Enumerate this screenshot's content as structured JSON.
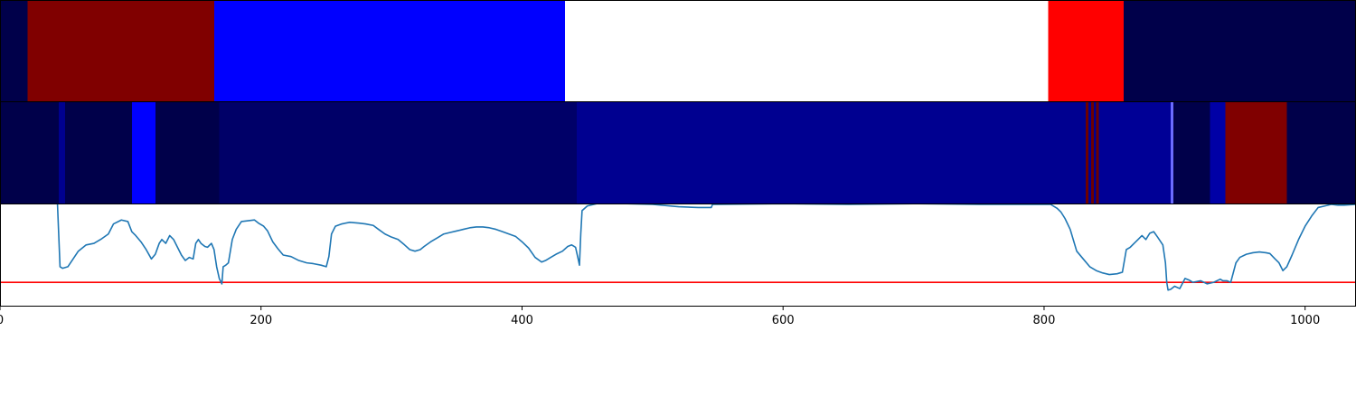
{
  "chart_data": [
    {
      "type": "heatmap",
      "colormap": "seismic",
      "segments": [
        {
          "start": 0,
          "end": 21,
          "color": "#00004a"
        },
        {
          "start": 21,
          "end": 164,
          "color": "#800000"
        },
        {
          "start": 164,
          "end": 433,
          "color": "#0000ff"
        },
        {
          "start": 433,
          "end": 803,
          "color": "#ffffff"
        },
        {
          "start": 803,
          "end": 861,
          "color": "#ff0000"
        },
        {
          "start": 861,
          "end": 1039,
          "color": "#00004a"
        }
      ]
    },
    {
      "type": "heatmap",
      "colormap": "seismic",
      "segments": [
        {
          "start": 0,
          "end": 45,
          "color": "#00004a"
        },
        {
          "start": 45,
          "end": 50,
          "color": "#00008f"
        },
        {
          "start": 50,
          "end": 101,
          "color": "#00004a"
        },
        {
          "start": 101,
          "end": 119,
          "color": "#0000ff"
        },
        {
          "start": 119,
          "end": 168,
          "color": "#00004a"
        },
        {
          "start": 168,
          "end": 442,
          "color": "#000068"
        },
        {
          "start": 442,
          "end": 832,
          "color": "#000090"
        },
        {
          "start": 832,
          "end": 834,
          "color": "#6e0000"
        },
        {
          "start": 834,
          "end": 836,
          "color": "#000090"
        },
        {
          "start": 836,
          "end": 838,
          "color": "#6e0000"
        },
        {
          "start": 838,
          "end": 840,
          "color": "#000090"
        },
        {
          "start": 840,
          "end": 842,
          "color": "#6e0000"
        },
        {
          "start": 842,
          "end": 897,
          "color": "#000096"
        },
        {
          "start": 897,
          "end": 899,
          "color": "#6a6aff"
        },
        {
          "start": 899,
          "end": 927,
          "color": "#00004a"
        },
        {
          "start": 927,
          "end": 939,
          "color": "#0000a6"
        },
        {
          "start": 939,
          "end": 986,
          "color": "#800000"
        },
        {
          "start": 986,
          "end": 1039,
          "color": "#00004a"
        }
      ]
    },
    {
      "type": "line",
      "xlim": [
        0,
        1039
      ],
      "ylim": [
        -0.3,
        1.0
      ],
      "xticks": [
        0,
        200,
        400,
        600,
        800,
        1000
      ],
      "threshold": {
        "y": 0.0,
        "color": "#ff0000"
      },
      "series": [
        {
          "color": "#1f77b4",
          "points": [
            [
              0,
              1.02
            ],
            [
              44,
              1.02
            ],
            [
              46,
              0.2
            ],
            [
              48,
              0.18
            ],
            [
              52,
              0.2
            ],
            [
              56,
              0.3
            ],
            [
              60,
              0.4
            ],
            [
              66,
              0.48
            ],
            [
              72,
              0.5
            ],
            [
              78,
              0.56
            ],
            [
              83,
              0.62
            ],
            [
              87,
              0.75
            ],
            [
              93,
              0.8
            ],
            [
              98,
              0.78
            ],
            [
              101,
              0.65
            ],
            [
              104,
              0.6
            ],
            [
              108,
              0.52
            ],
            [
              112,
              0.42
            ],
            [
              116,
              0.3
            ],
            [
              119,
              0.36
            ],
            [
              122,
              0.5
            ],
            [
              124,
              0.55
            ],
            [
              127,
              0.5
            ],
            [
              130,
              0.6
            ],
            [
              133,
              0.55
            ],
            [
              136,
              0.45
            ],
            [
              139,
              0.35
            ],
            [
              142,
              0.28
            ],
            [
              145,
              0.32
            ],
            [
              148,
              0.3
            ],
            [
              150,
              0.5
            ],
            [
              152,
              0.55
            ],
            [
              154,
              0.5
            ],
            [
              157,
              0.46
            ],
            [
              159,
              0.45
            ],
            [
              162,
              0.5
            ],
            [
              164,
              0.42
            ],
            [
              166,
              0.2
            ],
            [
              168,
              0.05
            ],
            [
              170,
              -0.02
            ],
            [
              171,
              0.2
            ],
            [
              173,
              0.22
            ],
            [
              175,
              0.25
            ],
            [
              178,
              0.55
            ],
            [
              181,
              0.68
            ],
            [
              185,
              0.78
            ],
            [
              190,
              0.79
            ],
            [
              195,
              0.8
            ],
            [
              198,
              0.76
            ],
            [
              202,
              0.72
            ],
            [
              205,
              0.66
            ],
            [
              209,
              0.52
            ],
            [
              213,
              0.43
            ],
            [
              217,
              0.35
            ],
            [
              223,
              0.33
            ],
            [
              229,
              0.28
            ],
            [
              235,
              0.25
            ],
            [
              240,
              0.24
            ],
            [
              246,
              0.22
            ],
            [
              250,
              0.2
            ],
            [
              252,
              0.33
            ],
            [
              254,
              0.62
            ],
            [
              257,
              0.72
            ],
            [
              262,
              0.75
            ],
            [
              268,
              0.77
            ],
            [
              275,
              0.76
            ],
            [
              280,
              0.75
            ],
            [
              286,
              0.73
            ],
            [
              290,
              0.68
            ],
            [
              295,
              0.62
            ],
            [
              300,
              0.58
            ],
            [
              305,
              0.55
            ],
            [
              310,
              0.48
            ],
            [
              314,
              0.42
            ],
            [
              318,
              0.4
            ],
            [
              322,
              0.42
            ],
            [
              325,
              0.46
            ],
            [
              330,
              0.52
            ],
            [
              335,
              0.57
            ],
            [
              340,
              0.62
            ],
            [
              345,
              0.64
            ],
            [
              350,
              0.66
            ],
            [
              355,
              0.68
            ],
            [
              360,
              0.7
            ],
            [
              365,
              0.71
            ],
            [
              370,
              0.71
            ],
            [
              375,
              0.7
            ],
            [
              380,
              0.68
            ],
            [
              385,
              0.65
            ],
            [
              390,
              0.62
            ],
            [
              395,
              0.59
            ],
            [
              400,
              0.52
            ],
            [
              405,
              0.44
            ],
            [
              410,
              0.32
            ],
            [
              415,
              0.26
            ],
            [
              418,
              0.28
            ],
            [
              422,
              0.32
            ],
            [
              426,
              0.36
            ],
            [
              431,
              0.4
            ],
            [
              435,
              0.46
            ],
            [
              438,
              0.48
            ],
            [
              441,
              0.45
            ],
            [
              443,
              0.3
            ],
            [
              444,
              0.22
            ],
            [
              445,
              0.62
            ],
            [
              446,
              0.92
            ],
            [
              450,
              0.98
            ],
            [
              460,
              1.02
            ],
            [
              480,
              1.01
            ],
            [
              500,
              1.0
            ],
            [
              520,
              0.97
            ],
            [
              535,
              0.96
            ],
            [
              545,
              0.96
            ],
            [
              546,
              1.0
            ],
            [
              550,
              1.0
            ],
            [
              600,
              1.01
            ],
            [
              650,
              1.0
            ],
            [
              700,
              1.01
            ],
            [
              750,
              1.0
            ],
            [
              800,
              1.0
            ],
            [
              805,
              1.0
            ],
            [
              810,
              0.95
            ],
            [
              813,
              0.9
            ],
            [
              816,
              0.82
            ],
            [
              820,
              0.68
            ],
            [
              825,
              0.4
            ],
            [
              830,
              0.3
            ],
            [
              835,
              0.2
            ],
            [
              840,
              0.15
            ],
            [
              845,
              0.12
            ],
            [
              850,
              0.1
            ],
            [
              856,
              0.11
            ],
            [
              860,
              0.13
            ],
            [
              863,
              0.42
            ],
            [
              866,
              0.45
            ],
            [
              869,
              0.5
            ],
            [
              872,
              0.55
            ],
            [
              875,
              0.6
            ],
            [
              878,
              0.55
            ],
            [
              881,
              0.63
            ],
            [
              884,
              0.65
            ],
            [
              887,
              0.58
            ],
            [
              891,
              0.48
            ],
            [
              893,
              0.25
            ],
            [
              894,
              0.0
            ],
            [
              895,
              -0.1
            ],
            [
              897,
              -0.09
            ],
            [
              900,
              -0.05
            ],
            [
              904,
              -0.08
            ],
            [
              908,
              0.05
            ],
            [
              911,
              0.03
            ],
            [
              914,
              0.0
            ],
            [
              920,
              0.02
            ],
            [
              925,
              -0.02
            ],
            [
              930,
              0.0
            ],
            [
              935,
              0.04
            ],
            [
              937,
              0.02
            ],
            [
              940,
              0.02
            ],
            [
              943,
              0.0
            ],
            [
              947,
              0.25
            ],
            [
              950,
              0.32
            ],
            [
              955,
              0.36
            ],
            [
              960,
              0.38
            ],
            [
              965,
              0.39
            ],
            [
              970,
              0.38
            ],
            [
              973,
              0.37
            ],
            [
              977,
              0.3
            ],
            [
              980,
              0.25
            ],
            [
              983,
              0.15
            ],
            [
              986,
              0.2
            ],
            [
              990,
              0.35
            ],
            [
              995,
              0.55
            ],
            [
              1000,
              0.72
            ],
            [
              1005,
              0.85
            ],
            [
              1010,
              0.96
            ],
            [
              1015,
              0.98
            ],
            [
              1020,
              1.0
            ],
            [
              1025,
              0.99
            ],
            [
              1030,
              0.99
            ],
            [
              1039,
              1.0
            ]
          ]
        }
      ]
    }
  ]
}
